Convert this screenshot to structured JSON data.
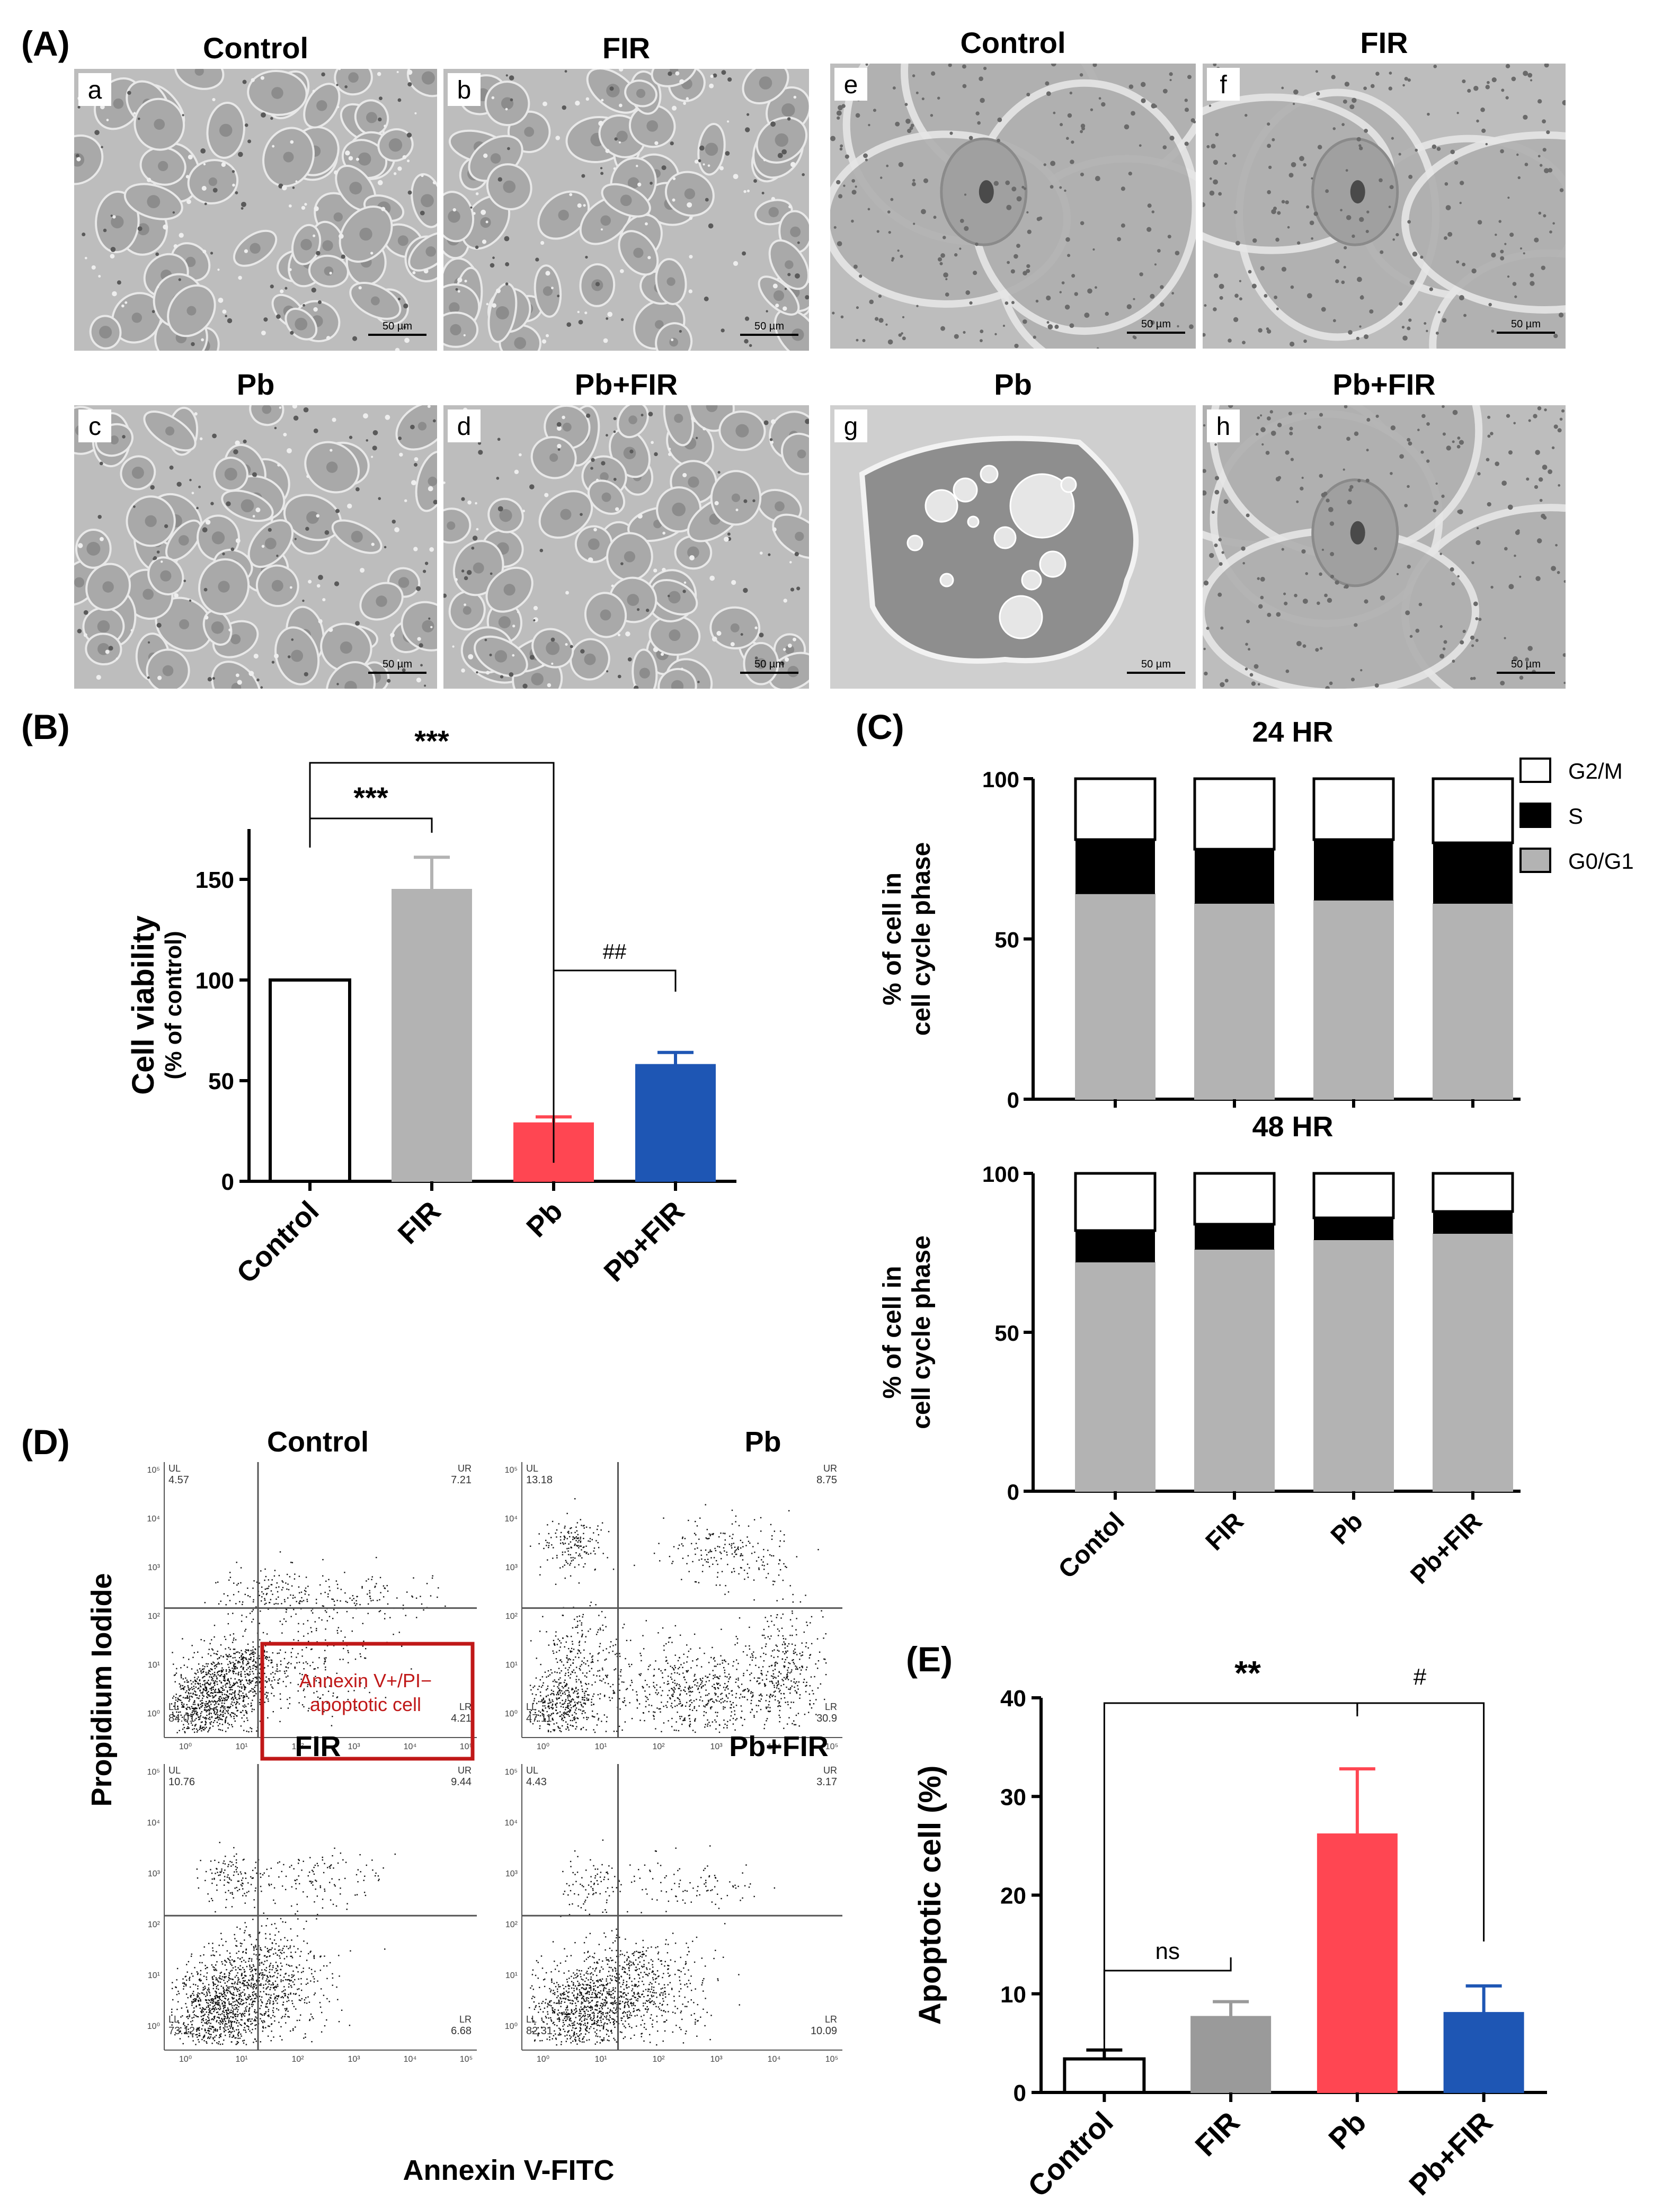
{
  "panelA": {
    "label": "(A)",
    "images": [
      {
        "letter": "a",
        "title": "Control",
        "scale": "50 µm",
        "kind": "low"
      },
      {
        "letter": "b",
        "title": "FIR",
        "scale": "50 µm",
        "kind": "low"
      },
      {
        "letter": "c",
        "title": "Pb",
        "scale": "50 µm",
        "kind": "low"
      },
      {
        "letter": "d",
        "title": "Pb+FIR",
        "scale": "50 µm",
        "kind": "low"
      },
      {
        "letter": "e",
        "title": "Control",
        "scale": "50 µm",
        "kind": "high"
      },
      {
        "letter": "f",
        "title": "FIR",
        "scale": "50 µm",
        "kind": "high"
      },
      {
        "letter": "g",
        "title": "Pb",
        "scale": "50 µm",
        "kind": "vacuole"
      },
      {
        "letter": "h",
        "title": "Pb+FIR",
        "scale": "50 µm",
        "kind": "high"
      }
    ]
  },
  "chart_data": [
    {
      "id": "B",
      "panel_label": "(B)",
      "type": "bar",
      "ylabel": "Cell viability",
      "ylabel_sub": "(% of control)",
      "categories": [
        "Control",
        "FIR",
        "Pb",
        "Pb+FIR"
      ],
      "values": [
        100,
        145,
        29,
        58
      ],
      "errors": [
        0,
        16,
        3,
        6
      ],
      "colors": [
        "#ffffff",
        "#b3b3b3",
        "#ff4652",
        "#1e56b4"
      ],
      "ylim": [
        0,
        175
      ],
      "yticks": [
        0,
        50,
        100,
        150
      ],
      "annotations": [
        {
          "from": "Control",
          "to": "FIR",
          "text": "***"
        },
        {
          "from": "Control",
          "to": "Pb",
          "text": "***"
        },
        {
          "from": "Pb",
          "to": "Pb+FIR",
          "text": "##"
        }
      ]
    },
    {
      "id": "C",
      "panel_label": "(C)",
      "type": "bar",
      "stacked": true,
      "ylabel": "% of cell in",
      "ylabel_sub": "cell cycle phase",
      "categories": [
        "Contol",
        "FIR",
        "Pb",
        "Pb+FIR"
      ],
      "legend": [
        {
          "name": "G2/M",
          "color": "#ffffff"
        },
        {
          "name": "S",
          "color": "#000000"
        },
        {
          "name": "G0/G1",
          "color": "#b3b3b3"
        }
      ],
      "ylim": [
        0,
        100
      ],
      "yticks": [
        0,
        50,
        100
      ],
      "subplots": [
        {
          "title": "24 HR",
          "G0/G1": [
            64,
            61,
            62,
            61
          ],
          "S": [
            17,
            17,
            19,
            19
          ],
          "G2/M": [
            19,
            22,
            19,
            20
          ]
        },
        {
          "title": "48 HR",
          "G0/G1": [
            72,
            76,
            79,
            81
          ],
          "S": [
            10,
            8,
            7,
            7
          ],
          "G2/M": [
            18,
            16,
            14,
            12
          ]
        }
      ]
    },
    {
      "id": "E",
      "panel_label": "(E)",
      "type": "bar",
      "ylabel": "Apoptotic cell (%)",
      "categories": [
        "Control",
        "FIR",
        "Pb",
        "Pb+FIR"
      ],
      "values": [
        3.4,
        7.7,
        26.2,
        8.1
      ],
      "errors": [
        0.9,
        1.5,
        6.6,
        2.7
      ],
      "colors": [
        "#ffffff",
        "#9a9a9a",
        "#ff4652",
        "#1e56b4"
      ],
      "ylim": [
        0,
        40
      ],
      "yticks": [
        0,
        10,
        20,
        30,
        40
      ],
      "annotations": [
        {
          "from": "Control",
          "to": "FIR",
          "text": "ns"
        },
        {
          "from": "Control",
          "to": "Pb",
          "text": "**"
        },
        {
          "from": "Pb",
          "to": "Pb+FIR",
          "text": "#"
        }
      ]
    }
  ],
  "panelD": {
    "label": "(D)",
    "ylabel": "Propidium Iodide",
    "xlabel": "Annexin V-FITC",
    "box_text": [
      "Annexin V+/PI−",
      "apoptotic cell"
    ],
    "log_ticks": [
      "10⁰",
      "10¹",
      "10²",
      "10³",
      "10⁴",
      "10⁵"
    ],
    "plots": [
      {
        "title": "Control",
        "UL": "4.57",
        "UR": "7.21",
        "LL": "84.01",
        "LR": "4.21",
        "pop": "control"
      },
      {
        "title": "Pb",
        "UL": "13.18",
        "UR": "8.75",
        "LL": "47.11",
        "LR": "30.9",
        "pop": "pb"
      },
      {
        "title": "FIR",
        "UL": "10.76",
        "UR": "9.44",
        "LL": "73.12",
        "LR": "6.68",
        "pop": "fir"
      },
      {
        "title": "Pb+FIR",
        "UL": "4.43",
        "UR": "3.17",
        "LL": "82.31",
        "LR": "10.09",
        "pop": "pbfir"
      }
    ],
    "quadrant_labels": {
      "ul": "UL",
      "ur": "UR",
      "ll": "LL",
      "lr": "LR"
    }
  }
}
